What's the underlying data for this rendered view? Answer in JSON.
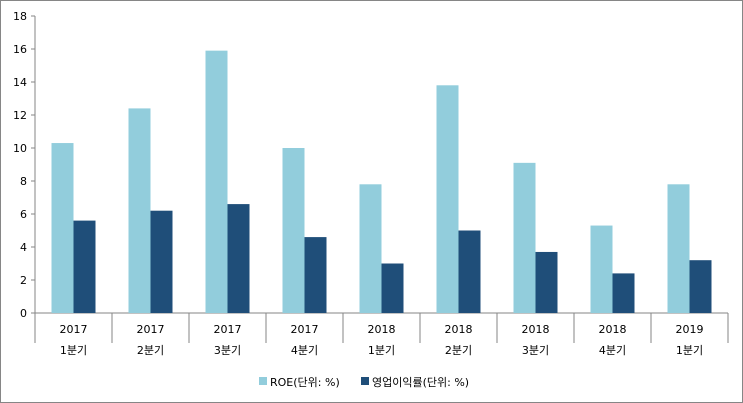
{
  "chart_data": {
    "type": "bar",
    "title": "",
    "xlabel": "",
    "ylabel": "",
    "ylim": [
      0,
      18
    ],
    "yticks": [
      0,
      2,
      4,
      6,
      8,
      10,
      12,
      14,
      16,
      18
    ],
    "grid": false,
    "legend_position": "bottom",
    "categories": [
      [
        "2017",
        "1분기"
      ],
      [
        "2017",
        "2분기"
      ],
      [
        "2017",
        "3분기"
      ],
      [
        "2017",
        "4분기"
      ],
      [
        "2018",
        "1분기"
      ],
      [
        "2018",
        "2분기"
      ],
      [
        "2018",
        "3분기"
      ],
      [
        "2018",
        "4분기"
      ],
      [
        "2019",
        "1분기"
      ]
    ],
    "series": [
      {
        "name": "ROE(단위: %)",
        "color": "#92CDDC",
        "values": [
          10.3,
          12.4,
          15.9,
          10.0,
          7.8,
          13.8,
          9.1,
          5.3,
          7.8
        ]
      },
      {
        "name": "영업이익률(단위: %)",
        "color": "#1F4E79",
        "values": [
          5.6,
          6.2,
          6.6,
          4.6,
          3.0,
          5.0,
          3.7,
          2.4,
          3.2
        ]
      }
    ]
  }
}
